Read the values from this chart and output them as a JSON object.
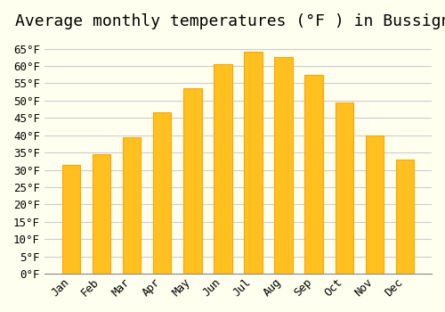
{
  "title": "Average monthly temperatures (°F ) in Bussigny",
  "months": [
    "Jan",
    "Feb",
    "Mar",
    "Apr",
    "May",
    "Jun",
    "Jul",
    "Aug",
    "Sep",
    "Oct",
    "Nov",
    "Dec"
  ],
  "values": [
    31.5,
    34.5,
    39.5,
    46.5,
    53.5,
    60.5,
    64.0,
    62.5,
    57.5,
    49.5,
    40.0,
    33.0
  ],
  "bar_color": "#FFC020",
  "bar_edge_color": "#FFA500",
  "background_color": "#FFFFF0",
  "grid_color": "#CCCCCC",
  "ylim": [
    0,
    68
  ],
  "yticks": [
    0,
    5,
    10,
    15,
    20,
    25,
    30,
    35,
    40,
    45,
    50,
    55,
    60,
    65
  ],
  "title_fontsize": 13,
  "tick_fontsize": 9,
  "font_family": "monospace"
}
